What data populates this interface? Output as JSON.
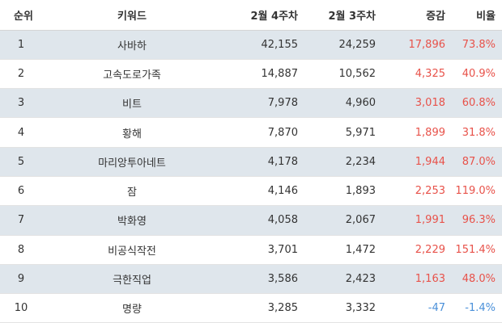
{
  "headers": {
    "rank": "순위",
    "keyword": "키워드",
    "week4": "2월 4주차",
    "week3": "2월 3주차",
    "change": "증감",
    "ratio": "비율"
  },
  "colors": {
    "row_stripe": "#dfe6ec",
    "positive": "#e8524a",
    "negative": "#4a90d9"
  },
  "rows": [
    {
      "rank": "1",
      "keyword": "사바하",
      "week4": "42,155",
      "week3": "24,259",
      "change": "17,896",
      "ratio": "73.8%"
    },
    {
      "rank": "2",
      "keyword": "고속도로가족",
      "week4": "14,887",
      "week3": "10,562",
      "change": "4,325",
      "ratio": "40.9%"
    },
    {
      "rank": "3",
      "keyword": "비트",
      "week4": "7,978",
      "week3": "4,960",
      "change": "3,018",
      "ratio": "60.8%"
    },
    {
      "rank": "4",
      "keyword": "황해",
      "week4": "7,870",
      "week3": "5,971",
      "change": "1,899",
      "ratio": "31.8%"
    },
    {
      "rank": "5",
      "keyword": "마리앙투아네트",
      "week4": "4,178",
      "week3": "2,234",
      "change": "1,944",
      "ratio": "87.0%"
    },
    {
      "rank": "6",
      "keyword": "잠",
      "week4": "4,146",
      "week3": "1,893",
      "change": "2,253",
      "ratio": "119.0%"
    },
    {
      "rank": "7",
      "keyword": "박화영",
      "week4": "4,058",
      "week3": "2,067",
      "change": "1,991",
      "ratio": "96.3%"
    },
    {
      "rank": "8",
      "keyword": "비공식작전",
      "week4": "3,701",
      "week3": "1,472",
      "change": "2,229",
      "ratio": "151.4%"
    },
    {
      "rank": "9",
      "keyword": "극한직업",
      "week4": "3,586",
      "week3": "2,423",
      "change": "1,163",
      "ratio": "48.0%"
    },
    {
      "rank": "10",
      "keyword": "명량",
      "week4": "3,285",
      "week3": "3,332",
      "change": "-47",
      "ratio": "-1.4%"
    }
  ]
}
